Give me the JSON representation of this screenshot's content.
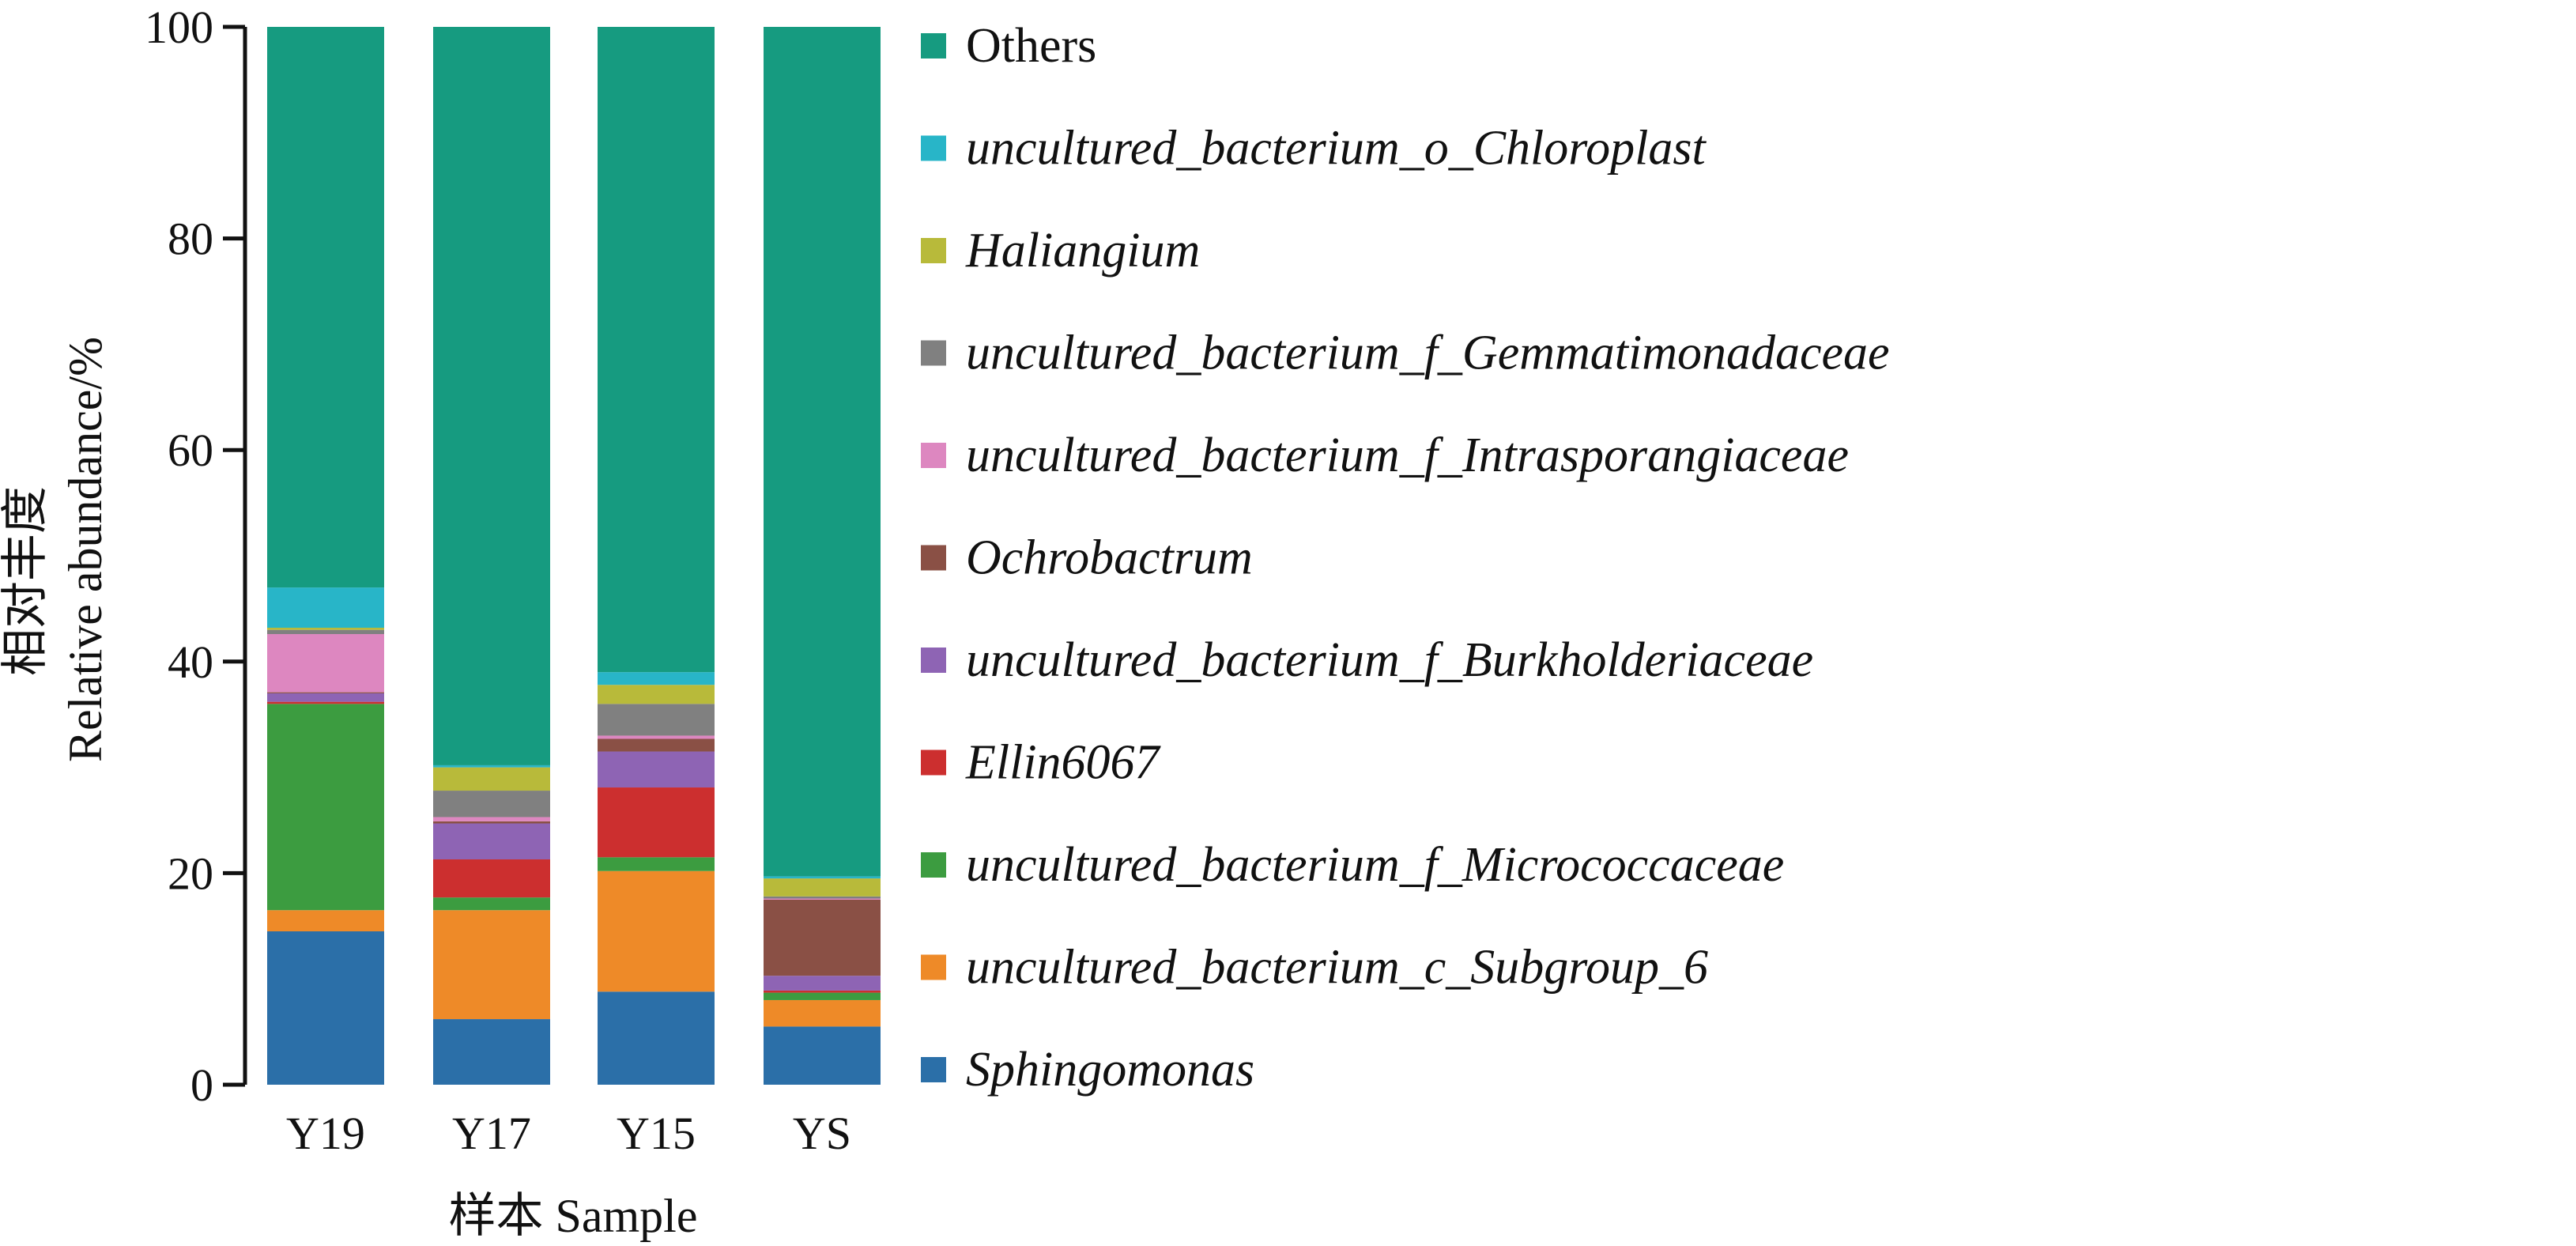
{
  "chart_data": {
    "type": "bar",
    "stacked": true,
    "categories": [
      "Y19",
      "Y17",
      "Y15",
      "YS"
    ],
    "xlabel": "样本 Sample",
    "ylabel_cn": "相对丰度",
    "ylabel_en": "Relative abundance/%",
    "ylim": [
      0,
      100
    ],
    "yticks": [
      "0",
      "20",
      "40",
      "60",
      "80",
      "100"
    ],
    "legend_position": "right",
    "series": [
      {
        "name": "Sphingomonas",
        "italic": true,
        "color": "#2b6fa8",
        "values": [
          14.5,
          6.2,
          8.8,
          5.5
        ]
      },
      {
        "name": "uncultured_bacterium_c_Subgroup_6",
        "italic": true,
        "color": "#ee8a28",
        "values": [
          2.0,
          10.3,
          11.4,
          2.5
        ]
      },
      {
        "name": "uncultured_bacterium_f_Micrococcaceae",
        "italic": true,
        "color": "#3c9c40",
        "values": [
          19.5,
          1.2,
          1.3,
          0.7
        ]
      },
      {
        "name": "Ellin6067",
        "italic": true,
        "color": "#cc2f2f",
        "values": [
          0.2,
          3.6,
          6.6,
          0.2
        ]
      },
      {
        "name": "uncultured_bacterium_f_Burkholderiaceae",
        "italic": true,
        "color": "#8e64b4",
        "values": [
          0.8,
          3.4,
          3.4,
          1.4
        ]
      },
      {
        "name": "Ochrobactrum",
        "italic": true,
        "color": "#8a5045",
        "values": [
          0.1,
          0.2,
          1.2,
          7.2
        ]
      },
      {
        "name": "uncultured_bacterium_f_Intrasporangiaceae",
        "italic": true,
        "color": "#dd87c0",
        "values": [
          5.5,
          0.4,
          0.3,
          0.1
        ]
      },
      {
        "name": "uncultured_bacterium_f_Gemmatimonadaceae",
        "italic": true,
        "color": "#808080",
        "values": [
          0.4,
          2.5,
          3.0,
          0.2
        ]
      },
      {
        "name": "Haliangium",
        "italic": true,
        "color": "#b8ba3a",
        "values": [
          0.2,
          2.2,
          1.8,
          1.7
        ]
      },
      {
        "name": "uncultured_bacterium_o_Chloroplast",
        "italic": true,
        "color": "#28b5c8",
        "values": [
          3.8,
          0.2,
          1.2,
          0.2
        ]
      },
      {
        "name": "Others",
        "italic": false,
        "color": "#169b80",
        "values": [
          53.0,
          69.8,
          61.0,
          80.3
        ]
      }
    ]
  }
}
